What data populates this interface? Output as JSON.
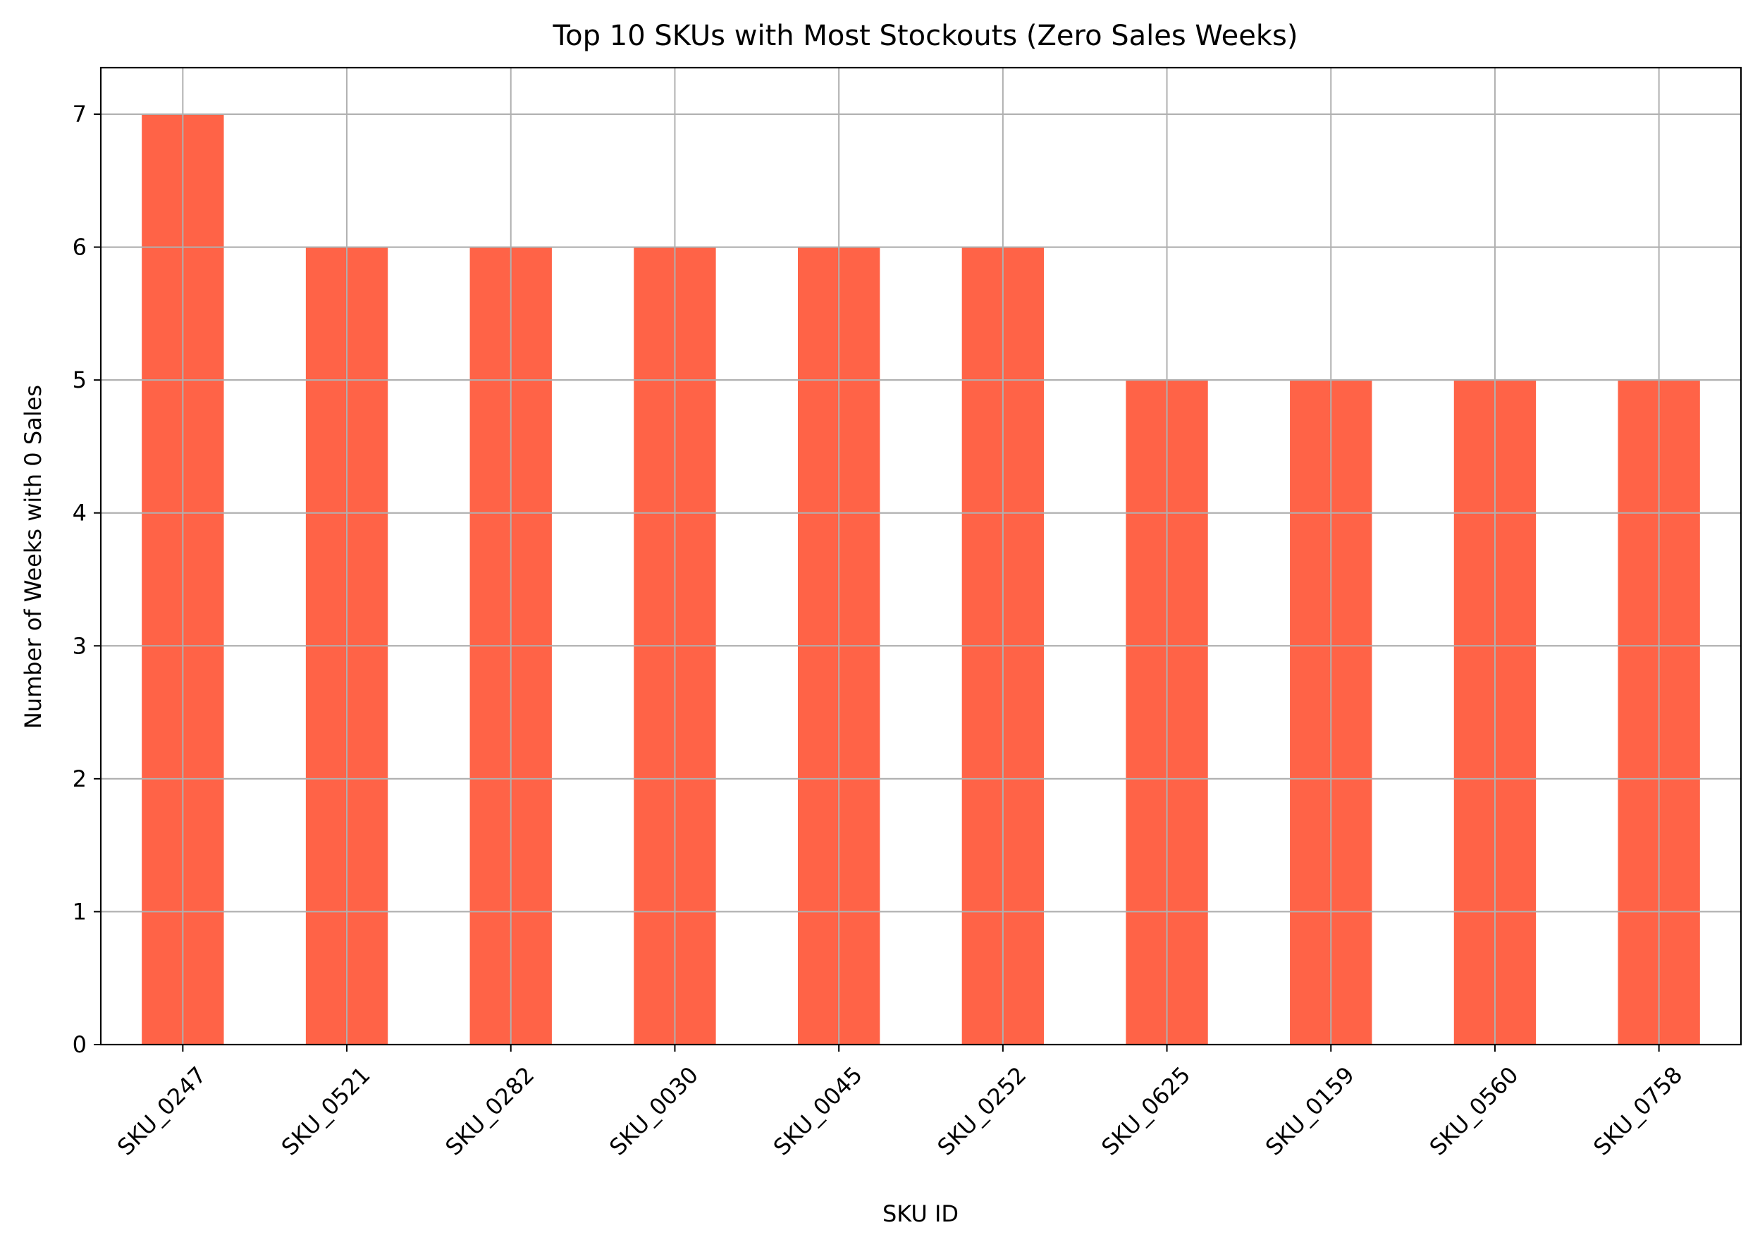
{
  "chart_data": {
    "type": "bar",
    "title": "Top 10 SKUs with Most Stockouts (Zero Sales Weeks)",
    "xlabel": "SKU ID",
    "ylabel": "Number of Weeks with 0 Sales",
    "categories": [
      "SKU_0247",
      "SKU_0521",
      "SKU_0282",
      "SKU_0030",
      "SKU_0045",
      "SKU_0252",
      "SKU_0625",
      "SKU_0159",
      "SKU_0560",
      "SKU_0758"
    ],
    "values": [
      7,
      6,
      6,
      6,
      6,
      6,
      5,
      5,
      5,
      5
    ],
    "ylim": [
      0,
      7.35
    ],
    "yticks": [
      0,
      1,
      2,
      3,
      4,
      5,
      6,
      7
    ],
    "grid": true,
    "bar_color": "#ff6347",
    "grid_color": "#b0b0b0",
    "xtick_rotation_deg": 45
  }
}
